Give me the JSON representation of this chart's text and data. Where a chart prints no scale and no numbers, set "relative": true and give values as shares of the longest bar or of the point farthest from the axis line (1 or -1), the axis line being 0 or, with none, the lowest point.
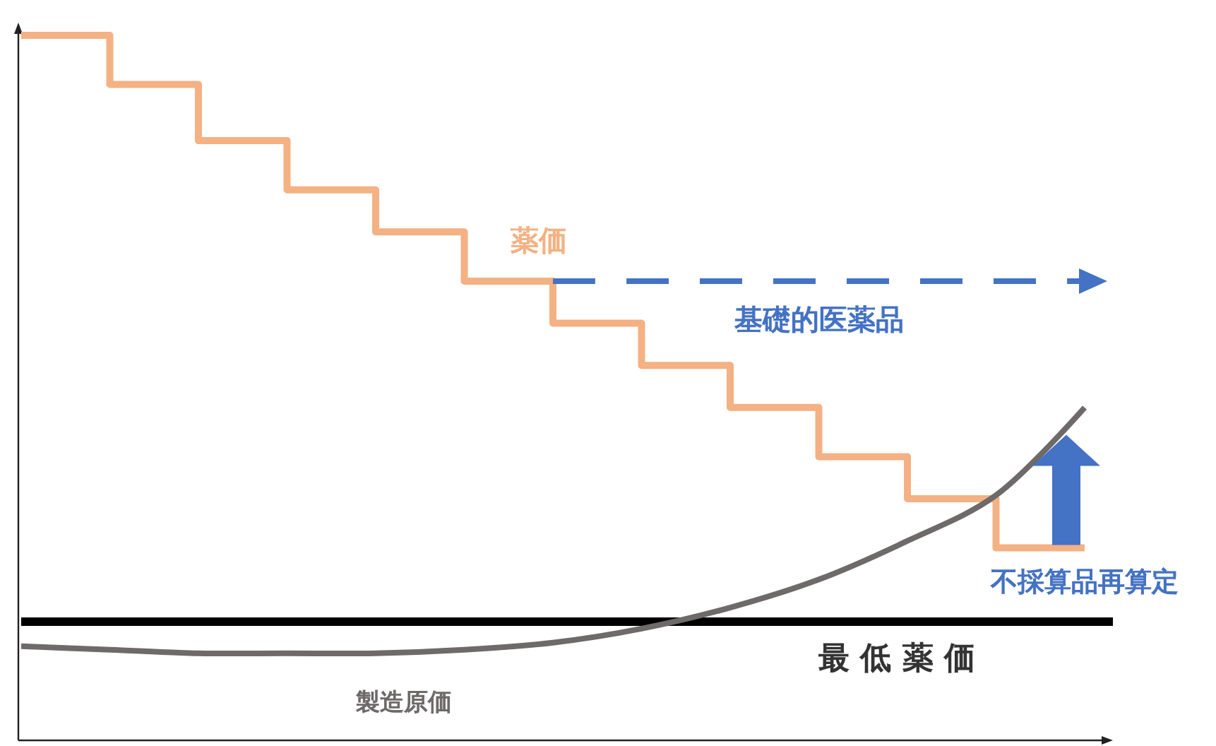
{
  "chart_data": {
    "type": "line",
    "relative": true,
    "categories": [
      null,
      null,
      null,
      null,
      null,
      null,
      null,
      null,
      null,
      null,
      null,
      null,
      null
    ],
    "series": [
      {
        "name": "薬価",
        "type": "step",
        "color": "#f4b183",
        "values": [
          1.0,
          0.93,
          0.85,
          0.78,
          0.72,
          0.65,
          0.59,
          0.53,
          0.47,
          0.4,
          0.34,
          0.27,
          0.27
        ]
      },
      {
        "name": "基礎的医薬品",
        "type": "line",
        "line_style": "dashed",
        "color": "#4472c4",
        "values": [
          null,
          null,
          null,
          null,
          null,
          null,
          0.65,
          0.65,
          0.65,
          0.65,
          0.65,
          0.65,
          0.65
        ]
      },
      {
        "name": "製造原価",
        "type": "line",
        "color": "#6e6a6a",
        "values": [
          0.13,
          0.125,
          0.12,
          0.12,
          0.12,
          0.125,
          0.135,
          0.155,
          0.185,
          0.225,
          0.28,
          0.345,
          0.47
        ]
      }
    ],
    "ref_lines": [
      {
        "axis": "y",
        "value": 0.165,
        "label": "最 低 薬 価",
        "color": "#000000"
      }
    ],
    "annotations": [
      "不採算品再算定"
    ]
  }
}
